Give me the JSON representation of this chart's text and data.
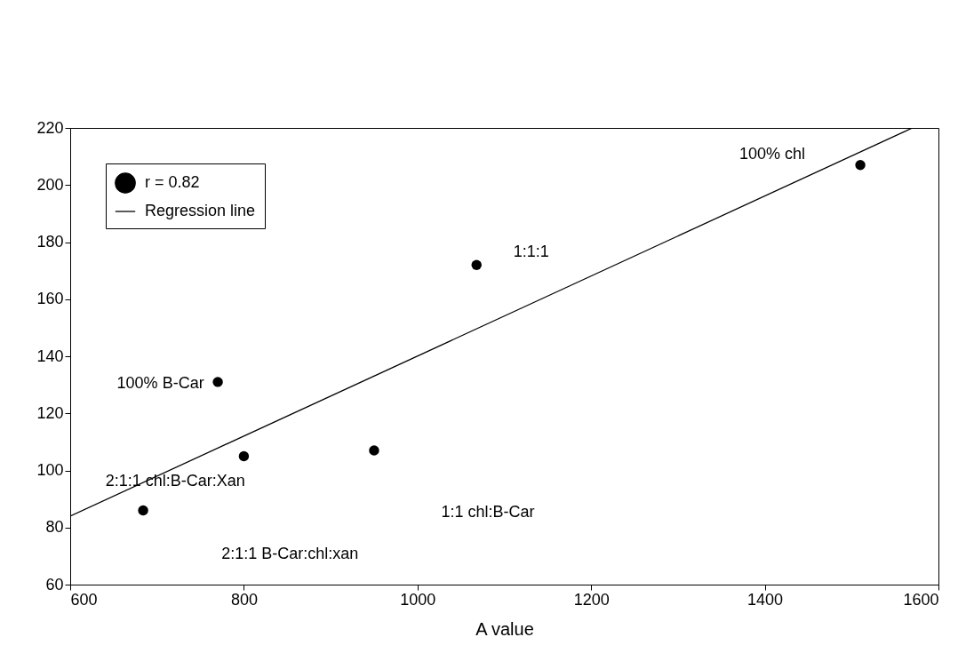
{
  "chart_data": {
    "type": "scatter",
    "xlabel": "A value",
    "xlim": [
      600,
      1600
    ],
    "ylim": [
      60,
      220
    ],
    "xticks": [
      600,
      800,
      1000,
      1200,
      1400,
      1600
    ],
    "yticks": [
      60,
      80,
      100,
      120,
      140,
      160,
      180,
      200,
      220
    ],
    "grid": false,
    "legend": "top left",
    "x": [
      684,
      770,
      800,
      950,
      1068,
      1510
    ],
    "series": [
      {
        "name": "r = 0.82",
        "color": "#000000",
        "marker": "circle",
        "values": [
          86,
          131,
          105,
          107,
          172,
          207
        ]
      },
      {
        "name": "Regression line",
        "type": "line",
        "color": "#000000",
        "x": [
          600,
          1570
        ],
        "values": [
          84,
          220
        ],
        "line_style": "solid"
      }
    ],
    "annotations": [
      "100% chl",
      "1:1:1",
      "100% B-Car",
      "2:1:1 chl:B-Car:Xan",
      "1:1 chl:B-Car",
      "2:1:1 B-Car:chl:xan"
    ]
  }
}
